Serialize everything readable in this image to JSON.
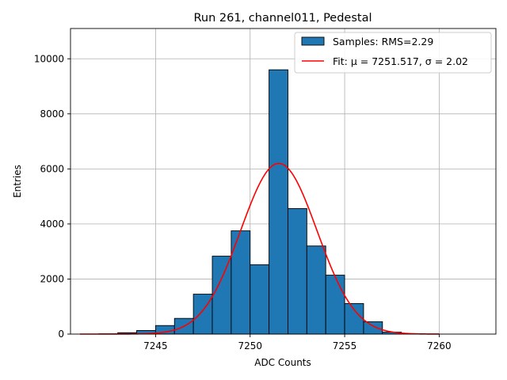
{
  "chart_data": {
    "type": "histogram",
    "title": "Run 261, channel011, Pedestal",
    "xlabel": "ADC Counts",
    "ylabel": "Entries",
    "xlim": [
      7240.5,
      7263.0
    ],
    "ylim": [
      0,
      11100
    ],
    "xticks": [
      7245,
      7250,
      7255,
      7260
    ],
    "yticks": [
      0,
      2000,
      4000,
      6000,
      8000,
      10000
    ],
    "grid": true,
    "legend_position": "top-right",
    "bin_width": 1,
    "bins": [
      {
        "left": 7241,
        "value": 0
      },
      {
        "left": 7242,
        "value": 10
      },
      {
        "left": 7243,
        "value": 50
      },
      {
        "left": 7244,
        "value": 130
      },
      {
        "left": 7245,
        "value": 310
      },
      {
        "left": 7246,
        "value": 570
      },
      {
        "left": 7247,
        "value": 1450
      },
      {
        "left": 7248,
        "value": 2830
      },
      {
        "left": 7249,
        "value": 3750
      },
      {
        "left": 7250,
        "value": 2520
      },
      {
        "left": 7251,
        "value": 9600
      },
      {
        "left": 7252,
        "value": 4560
      },
      {
        "left": 7253,
        "value": 3200
      },
      {
        "left": 7254,
        "value": 2140
      },
      {
        "left": 7255,
        "value": 1110
      },
      {
        "left": 7256,
        "value": 450
      },
      {
        "left": 7257,
        "value": 70
      },
      {
        "left": 7258,
        "value": 10
      }
    ],
    "fit": {
      "mu": 7251.517,
      "sigma": 2.02,
      "amplitude": 6200,
      "x_range": [
        7241,
        7260
      ]
    },
    "colors": {
      "bar_fill": "#1f77b4",
      "bar_edge": "#000000",
      "fit_line": "#ff0000",
      "grid": "#b0b0b0"
    },
    "legend": [
      {
        "label": "Samples: RMS=2.29",
        "kind": "bar"
      },
      {
        "label": "Fit: μ = 7251.517, σ = 2.02",
        "kind": "line"
      }
    ]
  }
}
